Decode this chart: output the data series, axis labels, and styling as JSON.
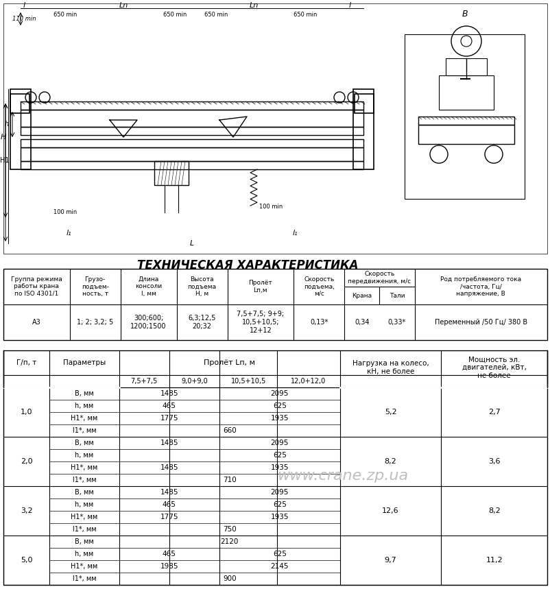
{
  "title_tech": "ТЕХНИЧЕСКАЯ ХАРАКТЕРИСТИКА",
  "bg_color": "#ffffff",
  "table1_headers": [
    "Группа режима\nработы крана\nпо ISO 4301/1",
    "Грузо-\nподъем-\nность, т",
    "Длина\nконсоли\nl, мм",
    "Высота\nподъема\nН, м",
    "Пролёт\nLп,м",
    "Скорость\nподъема,\nм/с",
    "Скорость передвижения, м/с\nКрана        Тали",
    "Род потребляемого тока\n/частота, Гц/\nнапряжение, В"
  ],
  "table1_col_headers_split": [
    [
      "Группа режима",
      "работы крана",
      "по ISO 4301/1"
    ],
    [
      "Грузо-",
      "подъем-",
      "ность, т"
    ],
    [
      "Длина",
      "консоли",
      "l, мм"
    ],
    [
      "Высота",
      "подъема",
      "Н, м"
    ],
    [
      "Пролёт",
      "Lп,м"
    ],
    [
      "Скорость",
      "подъема,",
      "м/с"
    ],
    [
      "Скорость",
      "передвижения, м/с",
      "Крана    Тали"
    ],
    [
      "Род потребляемого тока",
      "/частота, Гц/",
      "напряжение, В"
    ]
  ],
  "table1_data": [
    [
      "А3",
      "1; 2; 3,2; 5",
      "300;600;\n1200;1500",
      "6,3;12,5\n20;32",
      "7,5+7,5; 9+9;\n10,5+10,5;\n12+12",
      "0,13*",
      "0,34",
      "0,33*",
      "Переменный /50 Гц/ 380 В"
    ]
  ],
  "table2_main_headers": [
    "Г/п, т",
    "Параметры",
    "Пролёт Lп, м",
    "",
    "",
    "",
    "Нагрузка на колесо,\nкН, не более",
    "Мощность эл.\nдвигателей, кВт,\nне более"
  ],
  "table2_span_headers": [
    "7,5+7,5",
    "9,0+9,0",
    "10,5+10,5",
    "12,0+12,0"
  ],
  "table2_groups": [
    {
      "gp": "1,0",
      "rows": [
        {
          "param": "В, мм",
          "c1": "1485",
          "c2": "",
          "c3": "2095",
          "c4": ""
        },
        {
          "param": "h, мм",
          "c1": "465",
          "c2": "",
          "c3": "625",
          "c4": ""
        },
        {
          "param": "Н1*, мм",
          "c1": "1775",
          "c2": "",
          "c3": "1935",
          "c4": ""
        },
        {
          "param": "l1*, мм",
          "c1": "",
          "c2": "660",
          "c3": "",
          "c4": ""
        }
      ],
      "load": "5,2",
      "power": "2,7"
    },
    {
      "gp": "2,0",
      "rows": [
        {
          "param": "В, мм",
          "c1": "1485",
          "c2": "",
          "c3": "2095",
          "c4": ""
        },
        {
          "param": "h, мм",
          "c1": "",
          "c2": "",
          "c3": "625",
          "c4": ""
        },
        {
          "param": "Н1*, мм",
          "c1": "1485",
          "c2": "",
          "c3": "1935",
          "c4": ""
        },
        {
          "param": "l1*, мм",
          "c1": "",
          "c2": "710",
          "c3": "",
          "c4": ""
        }
      ],
      "load": "8,2",
      "power": "3,6"
    },
    {
      "gp": "3,2",
      "rows": [
        {
          "param": "В, мм",
          "c1": "1485",
          "c2": "",
          "c3": "2095",
          "c4": ""
        },
        {
          "param": "h, мм",
          "c1": "465",
          "c2": "",
          "c3": "625",
          "c4": ""
        },
        {
          "param": "Н1*, мм",
          "c1": "1775",
          "c2": "",
          "c3": "1935",
          "c4": ""
        },
        {
          "param": "l1*, мм",
          "c1": "",
          "c2": "750",
          "c3": "",
          "c4": ""
        }
      ],
      "load": "12,6",
      "power": "8,2"
    },
    {
      "gp": "5,0",
      "rows": [
        {
          "param": "В, мм",
          "c1": "",
          "c2": "2120",
          "c3": "",
          "c4": ""
        },
        {
          "param": "h, мм",
          "c1": "465",
          "c2": "",
          "c3": "625",
          "c4": ""
        },
        {
          "param": "Н1*, мм",
          "c1": "1985",
          "c2": "",
          "c3": "2145",
          "c4": ""
        },
        {
          "param": "l1*, мм",
          "c1": "",
          "c2": "900",
          "c3": "",
          "c4": ""
        }
      ],
      "load": "9,7",
      "power": "11,2"
    }
  ],
  "watermark_text": "www.crane.zp.ua",
  "font_size_title": 11,
  "font_size_table": 7.5,
  "font_size_small": 6.5
}
